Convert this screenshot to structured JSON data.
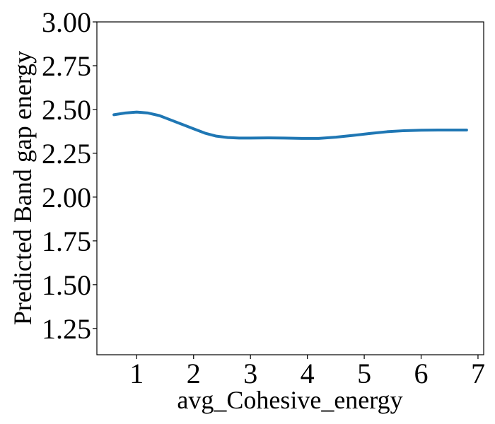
{
  "chart_data": {
    "type": "line",
    "title": "",
    "xlabel": "avg_Cohesive_energy",
    "ylabel": "Predicted Band gap energy",
    "xlim": [
      0.3,
      7.1
    ],
    "ylim": [
      1.1,
      3.0
    ],
    "xticks": [
      1,
      2,
      3,
      4,
      5,
      6,
      7
    ],
    "xtick_labels": [
      "1",
      "2",
      "3",
      "4",
      "5",
      "6",
      "7"
    ],
    "yticks": [
      1.25,
      1.5,
      1.75,
      2.0,
      2.25,
      2.5,
      2.75,
      3.0
    ],
    "ytick_labels": [
      "1.25",
      "1.50",
      "1.75",
      "2.00",
      "2.25",
      "2.50",
      "2.75",
      "3.00"
    ],
    "grid": false,
    "legend": "none",
    "series": [
      {
        "color": "#1f77b4",
        "x": [
          0.6,
          0.8,
          1.0,
          1.2,
          1.4,
          1.6,
          1.8,
          2.0,
          2.2,
          2.4,
          2.6,
          2.8,
          3.0,
          3.3,
          3.6,
          3.9,
          4.2,
          4.5,
          4.8,
          5.1,
          5.4,
          5.7,
          6.0,
          6.3,
          6.6,
          6.8
        ],
        "y": [
          2.47,
          2.48,
          2.485,
          2.48,
          2.465,
          2.44,
          2.415,
          2.39,
          2.365,
          2.348,
          2.34,
          2.337,
          2.337,
          2.338,
          2.337,
          2.335,
          2.335,
          2.342,
          2.352,
          2.363,
          2.373,
          2.379,
          2.382,
          2.383,
          2.383,
          2.383
        ]
      }
    ]
  }
}
